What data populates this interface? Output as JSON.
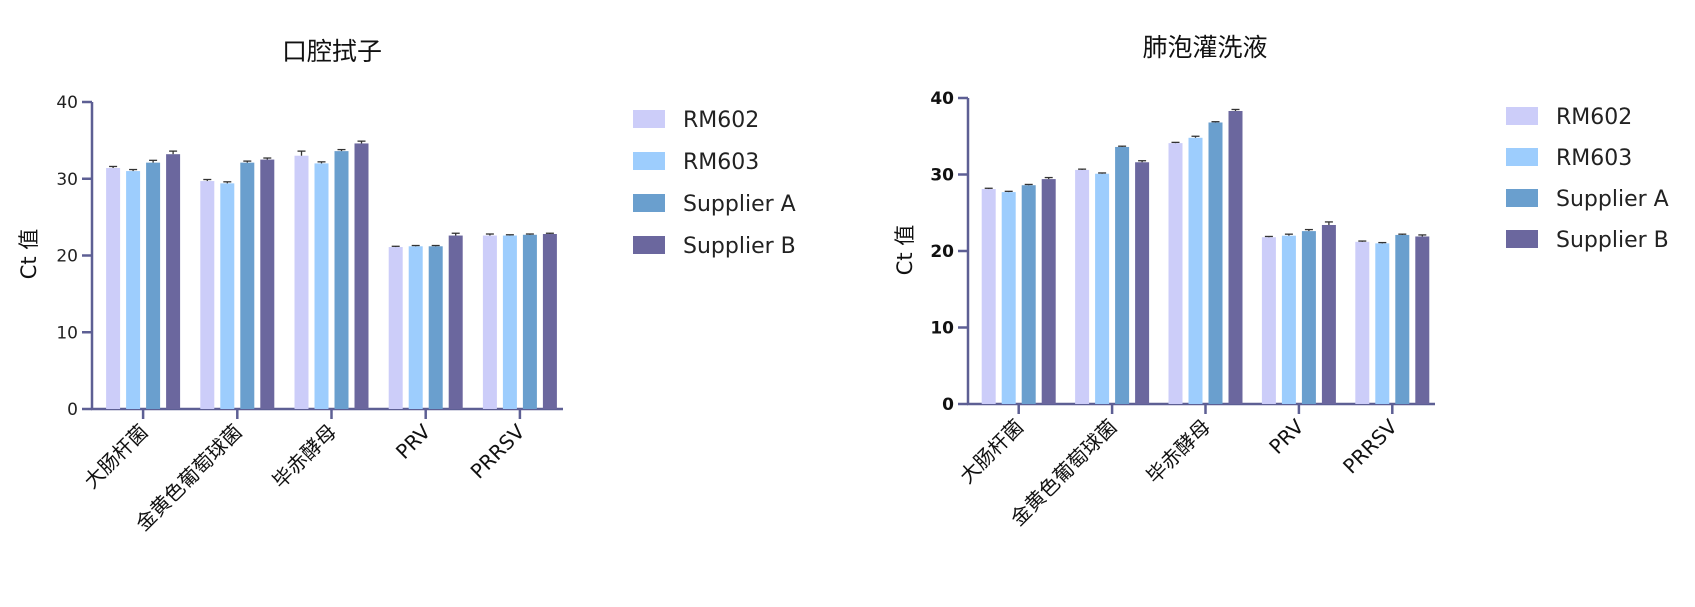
{
  "chart_data": [
    {
      "type": "bar",
      "title": "口腔拭子",
      "xlabel": "",
      "ylabel": "Ct 值",
      "ylim": [
        0,
        40
      ],
      "yticks": [
        "0",
        "10",
        "20",
        "30",
        "40"
      ],
      "categories": [
        "大肠杆菌",
        "金黄色葡萄球菌",
        "毕赤酵母",
        "PRV",
        "PRRSV"
      ],
      "series": [
        {
          "name": "RM602",
          "values": [
            31.4,
            29.7,
            33.0,
            21.1,
            22.6
          ],
          "errors": [
            0.2,
            0.2,
            0.6,
            0.1,
            0.2
          ]
        },
        {
          "name": "RM603",
          "values": [
            31.0,
            29.4,
            32.0,
            21.2,
            22.6
          ],
          "errors": [
            0.2,
            0.2,
            0.2,
            0.1,
            0.1
          ]
        },
        {
          "name": "Supplier A",
          "values": [
            32.1,
            32.1,
            33.6,
            21.2,
            22.7
          ],
          "errors": [
            0.3,
            0.2,
            0.2,
            0.1,
            0.1
          ]
        },
        {
          "name": "Supplier B",
          "values": [
            33.2,
            32.5,
            34.6,
            22.6,
            22.8
          ],
          "errors": [
            0.4,
            0.2,
            0.3,
            0.3,
            0.1
          ]
        }
      ],
      "legend_position": "right",
      "grid": false
    },
    {
      "type": "bar",
      "title": "肺泡灌洗液",
      "xlabel": "",
      "ylabel": "Ct 值",
      "ylim": [
        0,
        40
      ],
      "yticks": [
        "0",
        "10",
        "20",
        "30",
        "40"
      ],
      "categories": [
        "大肠杆菌",
        "金黄色葡萄球菌",
        "毕赤酵母",
        "PRV",
        "PRRSV"
      ],
      "series": [
        {
          "name": "RM602",
          "values": [
            28.1,
            30.6,
            34.1,
            21.8,
            21.2
          ],
          "errors": [
            0.1,
            0.1,
            0.1,
            0.1,
            0.1
          ]
        },
        {
          "name": "RM603",
          "values": [
            27.7,
            30.1,
            34.8,
            22.0,
            21.0
          ],
          "errors": [
            0.1,
            0.1,
            0.2,
            0.2,
            0.1
          ]
        },
        {
          "name": "Supplier A",
          "values": [
            28.6,
            33.6,
            36.8,
            22.6,
            22.1
          ],
          "errors": [
            0.1,
            0.1,
            0.1,
            0.2,
            0.1
          ]
        },
        {
          "name": "Supplier B",
          "values": [
            29.4,
            31.6,
            38.3,
            23.4,
            21.9
          ],
          "errors": [
            0.2,
            0.2,
            0.2,
            0.4,
            0.2
          ]
        }
      ],
      "legend_position": "right",
      "grid": false
    }
  ],
  "colors": {
    "RM602": "#cccdf9",
    "RM603": "#9dcdfd",
    "Supplier A": "#6a9fce",
    "Supplier B": "#6b679e",
    "axis": "#5d5f94"
  }
}
